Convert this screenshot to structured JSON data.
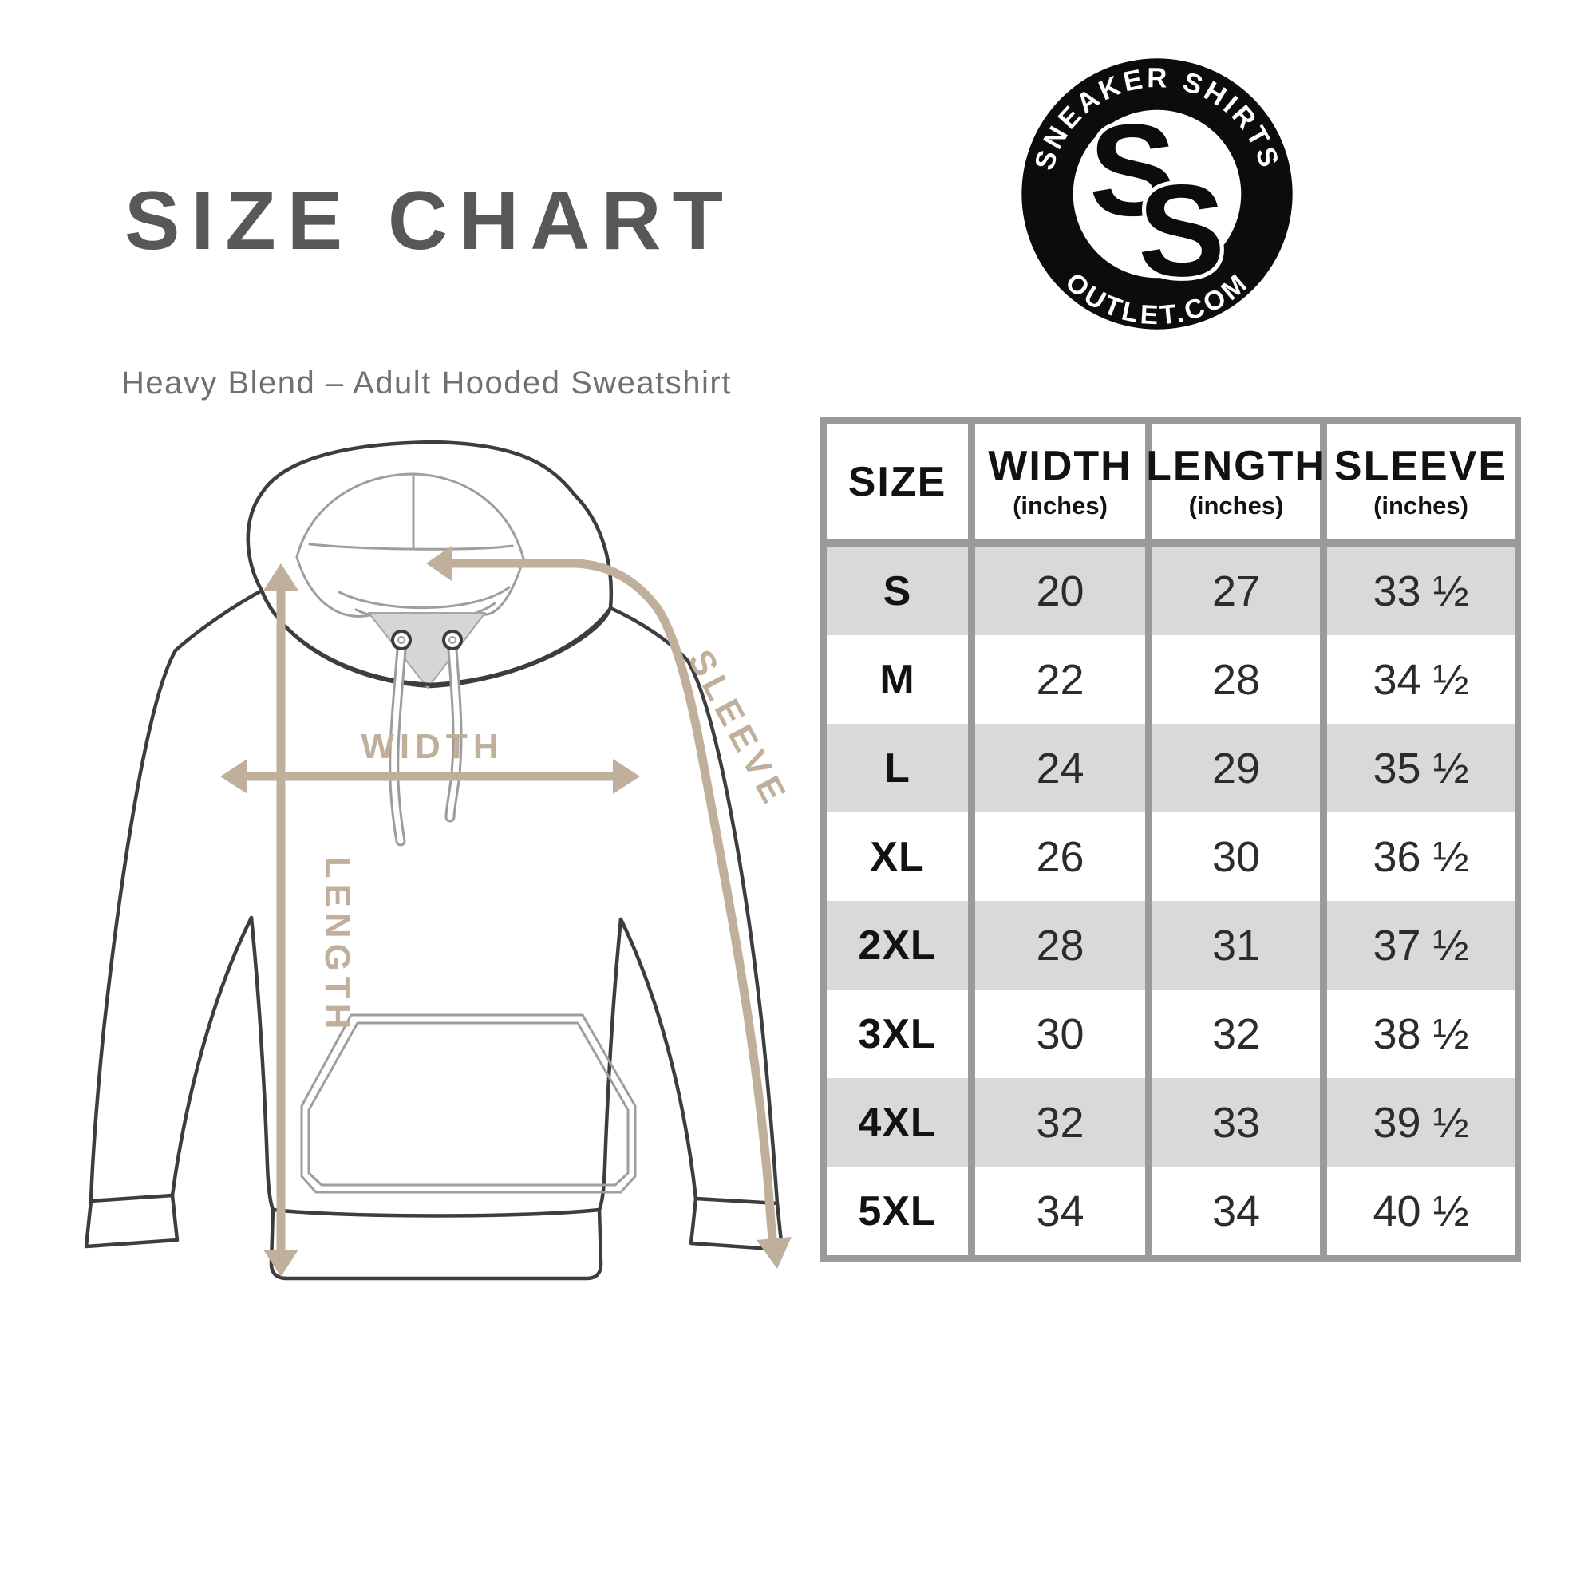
{
  "header": {
    "title": "SIZE CHART",
    "subtitle": "Heavy Blend – Adult Hooded Sweatshirt"
  },
  "logo": {
    "arc_top": "SNEAKER SHIRTS",
    "arc_bottom": "OUTLET.COM",
    "monogram_back": "S",
    "monogram_front": "S"
  },
  "diagram_labels": {
    "width": "WIDTH",
    "length": "LENGTH",
    "sleeve": "SLEEVE"
  },
  "colors": {
    "title_gray": "#57585a",
    "subtitle_gray": "#6f7073",
    "arrow_tan": "#c0b09b",
    "table_border_gray": "#9a9a9a",
    "row_alt_gray": "#d9d9d9",
    "header_text": "#121212"
  },
  "chart_data": {
    "type": "table",
    "title": "SIZE CHART",
    "subtitle": "Heavy Blend – Adult Hooded Sweatshirt",
    "columns": [
      {
        "label": "SIZE",
        "sub": ""
      },
      {
        "label": "WIDTH",
        "sub": "(inches)"
      },
      {
        "label": "LENGTH",
        "sub": "(inches)"
      },
      {
        "label": "SLEEVE",
        "sub": "(inches)"
      }
    ],
    "rows": [
      [
        "S",
        "20",
        "27",
        "33 ½"
      ],
      [
        "M",
        "22",
        "28",
        "34 ½"
      ],
      [
        "L",
        "24",
        "29",
        "35 ½"
      ],
      [
        "XL",
        "26",
        "30",
        "36 ½"
      ],
      [
        "2XL",
        "28",
        "31",
        "37 ½"
      ],
      [
        "3XL",
        "30",
        "32",
        "38 ½"
      ],
      [
        "4XL",
        "32",
        "33",
        "39 ½"
      ],
      [
        "5XL",
        "34",
        "34",
        "40 ½"
      ]
    ]
  }
}
